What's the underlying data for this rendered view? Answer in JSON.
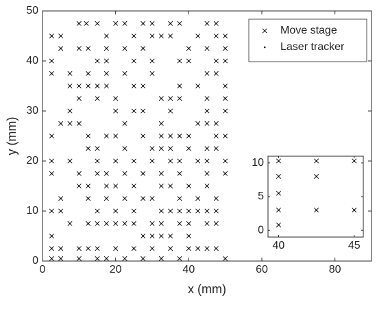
{
  "chart_data": [
    {
      "type": "scatter",
      "xlabel": "x (mm)",
      "ylabel": "y (mm)",
      "xlim": [
        0,
        90
      ],
      "ylim": [
        0,
        50
      ],
      "xticks": [
        0,
        20,
        40,
        60,
        80
      ],
      "yticks": [
        0,
        10,
        20,
        30,
        40,
        50
      ],
      "legend": "upper right",
      "series": [
        {
          "name": "Move stage",
          "marker": "x",
          "color": "#000000",
          "x": [
            10,
            12,
            15,
            20,
            22.5,
            27.5,
            30,
            35,
            37.5,
            45,
            47.5,
            2.5,
            5,
            17.5,
            25,
            30,
            32.5,
            35,
            42.5,
            47.5,
            50,
            5,
            10,
            12.5,
            17.5,
            22.5,
            27.5,
            40,
            45,
            50,
            2.5,
            15,
            17.5,
            25,
            30,
            37.5,
            40,
            47.5,
            50,
            2.5,
            7.5,
            12.5,
            17.5,
            22.5,
            30,
            45,
            47.5,
            7.5,
            10,
            12.5,
            15,
            17.5,
            25,
            27.5,
            37.5,
            42.5,
            50,
            10,
            15,
            20,
            32.5,
            35,
            37.5,
            45,
            50,
            7.5,
            20,
            25,
            27.5,
            35,
            45,
            50,
            5,
            7.5,
            10,
            22.5,
            32.5,
            42.5,
            45,
            47.5,
            2.5,
            12.5,
            17.5,
            20,
            27.5,
            32.5,
            35,
            37.5,
            40,
            47.5,
            50,
            12.5,
            15,
            22.5,
            30,
            32.5,
            35,
            40,
            45,
            47.5,
            2.5,
            7.5,
            15,
            20,
            25,
            30,
            35,
            37.5,
            42.5,
            45,
            50,
            2.5,
            10,
            15,
            17.5,
            22.5,
            27.5,
            32.5,
            37.5,
            45,
            50,
            10,
            12.5,
            17.5,
            20,
            25,
            32.5,
            35,
            40,
            45,
            5,
            12.5,
            17.5,
            22.5,
            27.5,
            30,
            37.5,
            42.5,
            47.5,
            2.5,
            5,
            15,
            20,
            25,
            32.5,
            35,
            37.5,
            40,
            42.5,
            45,
            47.5,
            7.5,
            12.5,
            15,
            17.5,
            20,
            22.5,
            25,
            30,
            32.5,
            37.5,
            40,
            45,
            47.5,
            2.5,
            27.5,
            30,
            32.5,
            35,
            40,
            2.5,
            5,
            10,
            12.5,
            15,
            20,
            25,
            30,
            35,
            40,
            42.5,
            45,
            47.5,
            2.5,
            5,
            10,
            15,
            17.5,
            22.5,
            27.5,
            32.5,
            37.5,
            50
          ],
          "y": [
            47.5,
            47.5,
            47.5,
            47.5,
            47.5,
            47.5,
            47.5,
            47.5,
            47.5,
            47.5,
            47.5,
            45,
            45,
            45,
            45,
            45,
            45,
            45,
            45,
            45,
            45,
            42.5,
            42.5,
            42.5,
            42.5,
            42.5,
            42.5,
            42.5,
            42.5,
            42.5,
            40,
            40,
            40,
            40,
            40,
            40,
            40,
            40,
            40,
            37.5,
            37.5,
            37.5,
            37.5,
            37.5,
            37.5,
            37.5,
            37.5,
            35,
            35,
            35,
            35,
            35,
            35,
            35,
            35,
            35,
            35,
            32.5,
            32.5,
            32.5,
            32.5,
            32.5,
            32.5,
            32.5,
            32.5,
            30,
            30,
            30,
            30,
            30,
            30,
            30,
            27.5,
            27.5,
            27.5,
            27.5,
            27.5,
            27.5,
            27.5,
            27.5,
            25,
            25,
            25,
            25,
            25,
            25,
            25,
            25,
            25,
            25,
            25,
            22.5,
            22.5,
            22.5,
            22.5,
            22.5,
            22.5,
            22.5,
            22.5,
            22.5,
            20,
            20,
            20,
            20,
            20,
            20,
            20,
            20,
            20,
            20,
            20,
            17.5,
            17.5,
            17.5,
            17.5,
            17.5,
            17.5,
            17.5,
            17.5,
            17.5,
            17.5,
            15,
            15,
            15,
            15,
            15,
            15,
            15,
            15,
            15,
            12.5,
            12.5,
            12.5,
            12.5,
            12.5,
            12.5,
            12.5,
            12.5,
            12.5,
            10,
            10,
            10,
            10,
            10,
            10,
            10,
            10,
            10,
            10,
            10,
            10,
            7.5,
            7.5,
            7.5,
            7.5,
            7.5,
            7.5,
            7.5,
            7.5,
            7.5,
            7.5,
            7.5,
            7.5,
            7.5,
            5,
            5,
            5,
            5,
            5,
            5,
            2.5,
            2.5,
            2.5,
            2.5,
            2.5,
            2.5,
            2.5,
            2.5,
            2.5,
            2.5,
            2.5,
            2.5,
            2.5,
            0.5,
            0.5,
            0.5,
            0.5,
            0.5,
            0.5,
            0.5,
            0.5,
            0.5,
            0.5
          ]
        },
        {
          "name": "Laser tracker",
          "marker": "dot",
          "color": "#000000",
          "x": [
            10,
            12,
            15,
            20,
            22.5,
            27.5,
            30,
            35,
            37.5,
            45,
            47.5,
            2.5,
            5,
            17.5,
            25,
            30,
            32.5,
            35,
            42.5,
            47.5,
            50,
            5,
            10,
            12.5,
            17.5,
            22.5,
            27.5,
            40,
            45,
            50,
            2.5,
            15,
            17.5,
            25,
            30,
            37.5,
            40,
            47.5,
            50,
            2.5,
            7.5,
            12.5,
            17.5,
            22.5,
            30,
            45,
            47.5,
            7.5,
            10,
            12.5,
            15,
            17.5,
            25,
            27.5,
            37.5,
            42.5,
            50,
            10,
            15,
            20,
            32.5,
            35,
            37.5,
            45,
            50,
            7.5,
            20,
            25,
            27.5,
            35,
            45,
            50,
            5,
            7.5,
            10,
            22.5,
            32.5,
            42.5,
            45,
            47.5,
            2.5,
            12.5,
            17.5,
            20,
            27.5,
            32.5,
            35,
            37.5,
            40,
            47.5,
            50,
            12.5,
            15,
            22.5,
            30,
            32.5,
            35,
            40,
            45,
            47.5,
            2.5,
            7.5,
            15,
            20,
            25,
            30,
            35,
            37.5,
            42.5,
            45,
            50,
            2.5,
            10,
            15,
            17.5,
            22.5,
            27.5,
            32.5,
            37.5,
            45,
            50,
            10,
            12.5,
            17.5,
            20,
            25,
            32.5,
            35,
            40,
            45,
            5,
            12.5,
            17.5,
            22.5,
            27.5,
            30,
            37.5,
            42.5,
            47.5,
            2.5,
            5,
            15,
            20,
            25,
            32.5,
            35,
            37.5,
            40,
            42.5,
            45,
            47.5,
            7.5,
            12.5,
            15,
            17.5,
            20,
            22.5,
            25,
            30,
            32.5,
            37.5,
            40,
            45,
            47.5,
            2.5,
            27.5,
            30,
            32.5,
            35,
            40,
            2.5,
            5,
            10,
            12.5,
            15,
            20,
            25,
            30,
            35,
            40,
            42.5,
            45,
            47.5,
            2.5,
            5,
            10,
            15,
            17.5,
            22.5,
            27.5,
            32.5,
            37.5,
            50
          ],
          "y": [
            47.5,
            47.5,
            47.5,
            47.5,
            47.5,
            47.5,
            47.5,
            47.5,
            47.5,
            47.5,
            47.5,
            45,
            45,
            45,
            45,
            45,
            45,
            45,
            45,
            45,
            45,
            42.5,
            42.5,
            42.5,
            42.5,
            42.5,
            42.5,
            42.5,
            42.5,
            42.5,
            40,
            40,
            40,
            40,
            40,
            40,
            40,
            40,
            40,
            37.5,
            37.5,
            37.5,
            37.5,
            37.5,
            37.5,
            37.5,
            37.5,
            35,
            35,
            35,
            35,
            35,
            35,
            35,
            35,
            35,
            35,
            32.5,
            32.5,
            32.5,
            32.5,
            32.5,
            32.5,
            32.5,
            32.5,
            30,
            30,
            30,
            30,
            30,
            30,
            30,
            27.5,
            27.5,
            27.5,
            27.5,
            27.5,
            27.5,
            27.5,
            27.5,
            25,
            25,
            25,
            25,
            25,
            25,
            25,
            25,
            25,
            25,
            25,
            22.5,
            22.5,
            22.5,
            22.5,
            22.5,
            22.5,
            22.5,
            22.5,
            22.5,
            20,
            20,
            20,
            20,
            20,
            20,
            20,
            20,
            20,
            20,
            20,
            17.5,
            17.5,
            17.5,
            17.5,
            17.5,
            17.5,
            17.5,
            17.5,
            17.5,
            17.5,
            15,
            15,
            15,
            15,
            15,
            15,
            15,
            15,
            15,
            12.5,
            12.5,
            12.5,
            12.5,
            12.5,
            12.5,
            12.5,
            12.5,
            12.5,
            10,
            10,
            10,
            10,
            10,
            10,
            10,
            10,
            10,
            10,
            10,
            10,
            7.5,
            7.5,
            7.5,
            7.5,
            7.5,
            7.5,
            7.5,
            7.5,
            7.5,
            7.5,
            7.5,
            7.5,
            7.5,
            5,
            5,
            5,
            5,
            5,
            5,
            2.5,
            2.5,
            2.5,
            2.5,
            2.5,
            2.5,
            2.5,
            2.5,
            2.5,
            2.5,
            2.5,
            2.5,
            2.5,
            0.5,
            0.5,
            0.5,
            0.5,
            0.5,
            0.5,
            0.5,
            0.5,
            0.5,
            0.5
          ]
        }
      ]
    },
    {
      "type": "scatter",
      "xlim": [
        39.3,
        45.6
      ],
      "ylim": [
        -1,
        11
      ],
      "xticks": [
        40,
        45
      ],
      "yticks": [
        0,
        5,
        10
      ],
      "series": [
        {
          "marker": "x",
          "color": "#000000",
          "x": [
            40,
            40,
            40,
            40,
            40,
            42.5,
            42.5,
            42.5,
            45,
            45
          ],
          "y": [
            10.3,
            8,
            5.5,
            3,
            0.8,
            10.3,
            8,
            3,
            10.3,
            3
          ]
        },
        {
          "marker": "dot",
          "color": "#000000",
          "x": [
            40,
            40,
            40,
            40,
            40,
            42.5,
            42.5,
            42.5,
            45,
            45
          ],
          "y": [
            10.3,
            8,
            5.5,
            3,
            0.8,
            10.3,
            8,
            3,
            10.3,
            3
          ]
        }
      ]
    }
  ]
}
